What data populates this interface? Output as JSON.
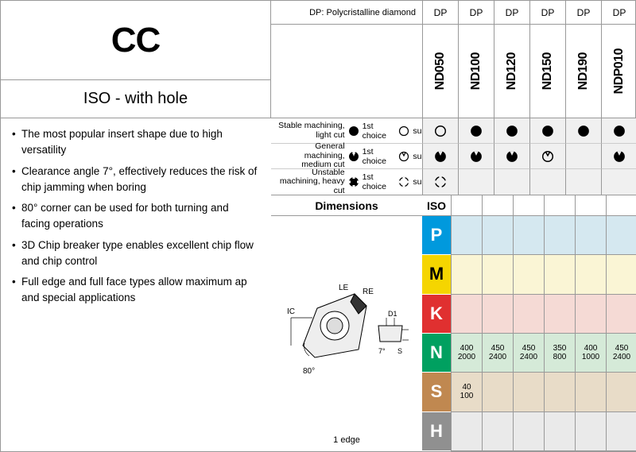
{
  "header": {
    "code": "CC",
    "subtitle": "ISO - with hole",
    "dp_note": "DP: Polycristalline diamond"
  },
  "bullets": [
    "The most popular insert shape due to high versatility",
    "Clearance angle 7°, effectively reduces the risk of chip jamming when boring",
    "80° corner can be used for both turning and facing operations",
    "3D Chip breaker type enables excellent chip flow and chip control",
    "Full edge and full face types allow maximum ap and special applications"
  ],
  "legend": {
    "rows": [
      {
        "label": "Stable machining, light cut",
        "first_icon": "circle-filled",
        "first_text": "1st choice",
        "suit_icon": "circle-open",
        "suit_text": "suitable"
      },
      {
        "label": "General machining, medium cut",
        "first_icon": "pac-filled",
        "first_text": "1st choice",
        "suit_icon": "pac-open",
        "suit_text": "suitable"
      },
      {
        "label": "Unstable machining, heavy cut",
        "first_icon": "cross-filled",
        "first_text": "1st choice",
        "suit_icon": "cross-open",
        "suit_text": "suitable"
      }
    ]
  },
  "dimensions": {
    "header": "Dimensions",
    "edge_text": "1 edge",
    "labels": {
      "LE": "LE",
      "RE": "RE",
      "IC": "IC",
      "D1": "D1",
      "S": "S",
      "angle7": "7°",
      "angle80": "80°"
    }
  },
  "grades": {
    "dp_label": "DP",
    "columns": [
      "ND050",
      "ND100",
      "ND120",
      "ND150",
      "ND190",
      "NDP010"
    ],
    "suitability": [
      [
        "circle-open",
        "circle-filled",
        "circle-filled",
        "circle-filled",
        "circle-filled",
        "circle-filled"
      ],
      [
        "pac-filled",
        "pac-filled",
        "pac-filled",
        "pac-open",
        "",
        "pac-filled"
      ],
      [
        "cross-open",
        "",
        "",
        "",
        "",
        ""
      ]
    ]
  },
  "iso": {
    "header": "ISO",
    "materials": [
      "P",
      "M",
      "K",
      "N",
      "S",
      "H"
    ],
    "colors": {
      "P": {
        "bg": "#0099dd",
        "cell": "#d5e8f0"
      },
      "M": {
        "bg": "#f5d500",
        "cell": "#faf5d5"
      },
      "K": {
        "bg": "#e03030",
        "cell": "#f5dad5"
      },
      "N": {
        "bg": "#00a060",
        "cell": "#d5ead8"
      },
      "S": {
        "bg": "#c08850",
        "cell": "#e8dcc8"
      },
      "H": {
        "bg": "#909090",
        "cell": "#eaeaea"
      }
    },
    "data": {
      "N": [
        [
          "400",
          "2000"
        ],
        [
          "450",
          "2400"
        ],
        [
          "450",
          "2400"
        ],
        [
          "350",
          "800"
        ],
        [
          "400",
          "1000"
        ],
        [
          "450",
          "2400"
        ]
      ],
      "S": [
        [
          "40",
          "100"
        ],
        [
          "",
          ""
        ],
        [
          "",
          ""
        ],
        [
          "",
          ""
        ],
        [
          "",
          ""
        ],
        [
          "",
          ""
        ]
      ]
    }
  }
}
